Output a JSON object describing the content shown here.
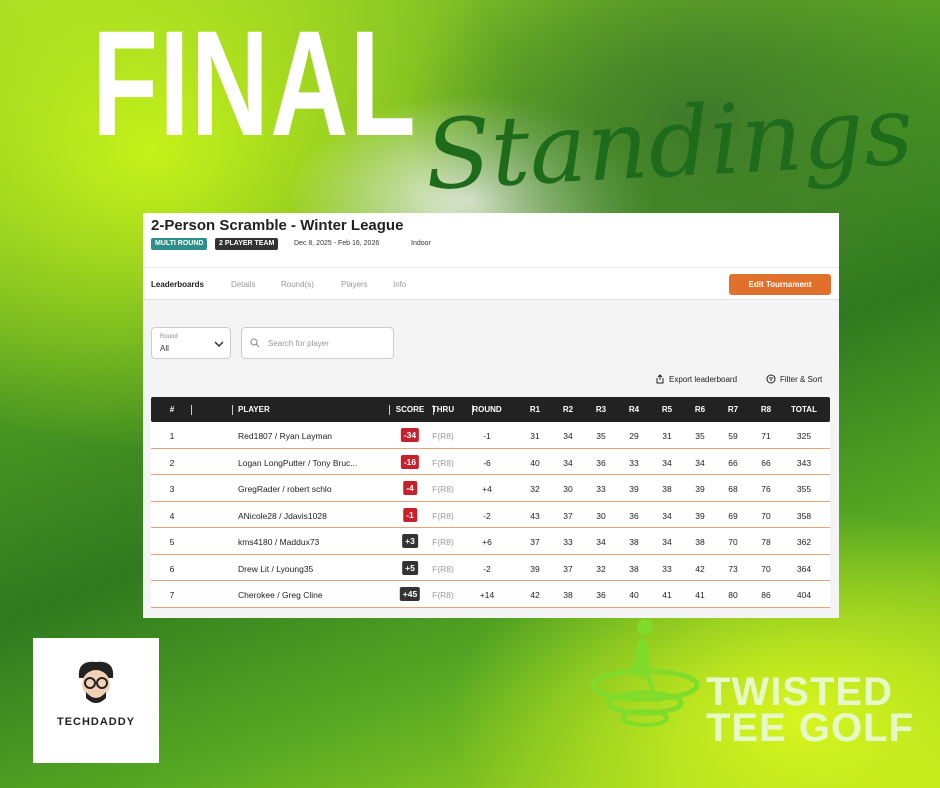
{
  "poster": {
    "headline": "FINAL",
    "subheadline": "Standings"
  },
  "header": {
    "title": "2-Person Scramble - Winter League",
    "badges": [
      "MULTI ROUND",
      "2 PLAYER TEAM"
    ],
    "dates": "Dec 8, 2025 - Feb 16, 2026",
    "location": "Indoor"
  },
  "tabs": [
    "Leaderboards",
    "Details",
    "Round(s)",
    "Players",
    "Info"
  ],
  "button": "Edit Tournament",
  "filters": {
    "round_label": "Round",
    "round_value": "All",
    "search_placeholder": "Search for player",
    "export": "Export leaderboard",
    "filter_sort": "Filter & Sort"
  },
  "table": {
    "columns": [
      "#",
      "PLAYER",
      "SCORE",
      "THRU",
      "ROUND",
      "R1",
      "R2",
      "R3",
      "R4",
      "R5",
      "R6",
      "R7",
      "R8",
      "TOTAL"
    ],
    "rows": [
      [
        "1",
        "Red1807 / Ryan Layman",
        "-34",
        "F(R8)",
        "-1",
        "31",
        "34",
        "35",
        "29",
        "31",
        "35",
        "59",
        "71",
        "325"
      ],
      [
        "2",
        "Logan LongPutter / Tony Bruc...",
        "-16",
        "F(R8)",
        "-6",
        "40",
        "34",
        "36",
        "33",
        "34",
        "34",
        "66",
        "66",
        "343"
      ],
      [
        "3",
        "GregRader / robert schlo",
        "-4",
        "F(R8)",
        "+4",
        "32",
        "30",
        "33",
        "39",
        "38",
        "39",
        "68",
        "76",
        "355"
      ],
      [
        "4",
        "ANicole28 / Jdavis1028",
        "-1",
        "F(R8)",
        "-2",
        "43",
        "37",
        "30",
        "36",
        "34",
        "39",
        "69",
        "70",
        "358"
      ],
      [
        "5",
        "kms4180 / Maddux73",
        "+3",
        "F(R8)",
        "+6",
        "37",
        "33",
        "34",
        "38",
        "34",
        "38",
        "70",
        "78",
        "362"
      ],
      [
        "6",
        "Drew Lit / Lyoung35",
        "+5",
        "F(R8)",
        "-2",
        "39",
        "37",
        "32",
        "38",
        "33",
        "42",
        "73",
        "70",
        "364"
      ],
      [
        "7",
        "Cherokee / Greg Cline",
        "+45",
        "F(R8)",
        "+14",
        "42",
        "38",
        "36",
        "40",
        "41",
        "41",
        "80",
        "86",
        "404"
      ]
    ]
  },
  "logos": {
    "techdaddy": "TECHDADDY",
    "twisted_line1": "TWISTED",
    "twisted_line2": "TEE GOLF"
  }
}
